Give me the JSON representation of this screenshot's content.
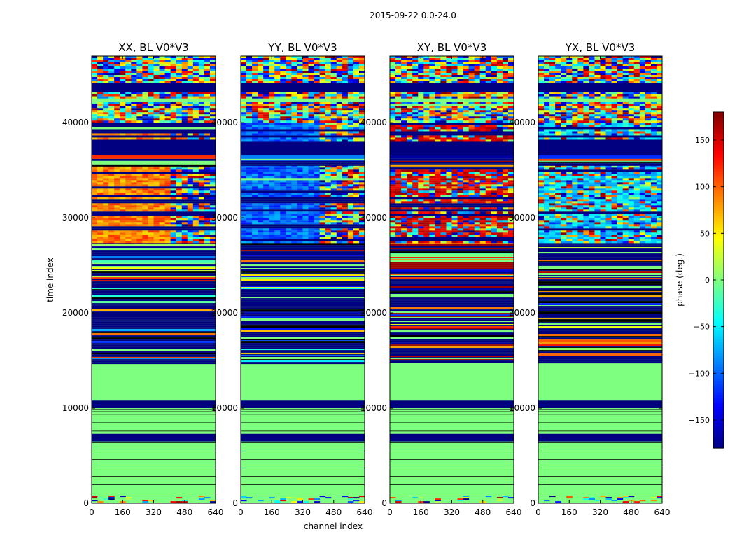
{
  "chart_data": {
    "type": "heatmap",
    "suptitle": "2015-09-22 0.0-24.0",
    "xlabel": "channel index",
    "ylabel": "time index",
    "xlim": [
      0,
      640
    ],
    "ylim": [
      0,
      47000
    ],
    "xticks": [
      "0",
      "160",
      "320",
      "480",
      "640"
    ],
    "xtick_values": [
      0,
      160,
      320,
      480,
      640
    ],
    "yticks": [
      "0",
      "10000",
      "20000",
      "30000",
      "40000"
    ],
    "ytick_values": [
      0,
      10000,
      20000,
      30000,
      40000
    ],
    "panels": [
      {
        "title": "XX, BL V0*V3",
        "mode": "warm"
      },
      {
        "title": "YY, BL V0*V3",
        "mode": "cool"
      },
      {
        "title": "XY, BL V0*V3",
        "mode": "noisy"
      },
      {
        "title": "YX, BL V0*V3",
        "mode": "mixed"
      }
    ],
    "colorbar": {
      "label": "phase (deg.)",
      "range": [
        -180,
        180
      ],
      "ticks": [
        "150",
        "100",
        "50",
        "0",
        "−50",
        "−100",
        "−150"
      ],
      "tick_values": [
        150,
        100,
        50,
        0,
        -50,
        -100,
        -150
      ],
      "colormap": "jet"
    },
    "bands": [
      {
        "from": 0,
        "to": 800,
        "kind": "mostly-green-noise"
      },
      {
        "from": 800,
        "to": 6500,
        "kind": "green-with-lines"
      },
      {
        "from": 6500,
        "to": 7300,
        "kind": "flagged"
      },
      {
        "from": 7300,
        "to": 9500,
        "kind": "green-with-lines"
      },
      {
        "from": 9500,
        "to": 10000,
        "kind": "green-lines-dense"
      },
      {
        "from": 10000,
        "to": 10800,
        "kind": "flagged"
      },
      {
        "from": 10800,
        "to": 14800,
        "kind": "green-solid"
      },
      {
        "from": 14800,
        "to": 27500,
        "kind": "stripes"
      },
      {
        "from": 27500,
        "to": 35500,
        "kind": "structured-signal"
      },
      {
        "from": 35500,
        "to": 36200,
        "kind": "stripes"
      },
      {
        "from": 36200,
        "to": 36600,
        "kind": "ridge"
      },
      {
        "from": 36600,
        "to": 38200,
        "kind": "flagged"
      },
      {
        "from": 38200,
        "to": 40200,
        "kind": "structured-signal"
      },
      {
        "from": 40200,
        "to": 42200,
        "kind": "noise"
      },
      {
        "from": 42200,
        "to": 42600,
        "kind": "green-solid"
      },
      {
        "from": 42600,
        "to": 43200,
        "kind": "noise"
      },
      {
        "from": 43200,
        "to": 44200,
        "kind": "flagged"
      },
      {
        "from": 44200,
        "to": 47000,
        "kind": "noise"
      }
    ]
  }
}
